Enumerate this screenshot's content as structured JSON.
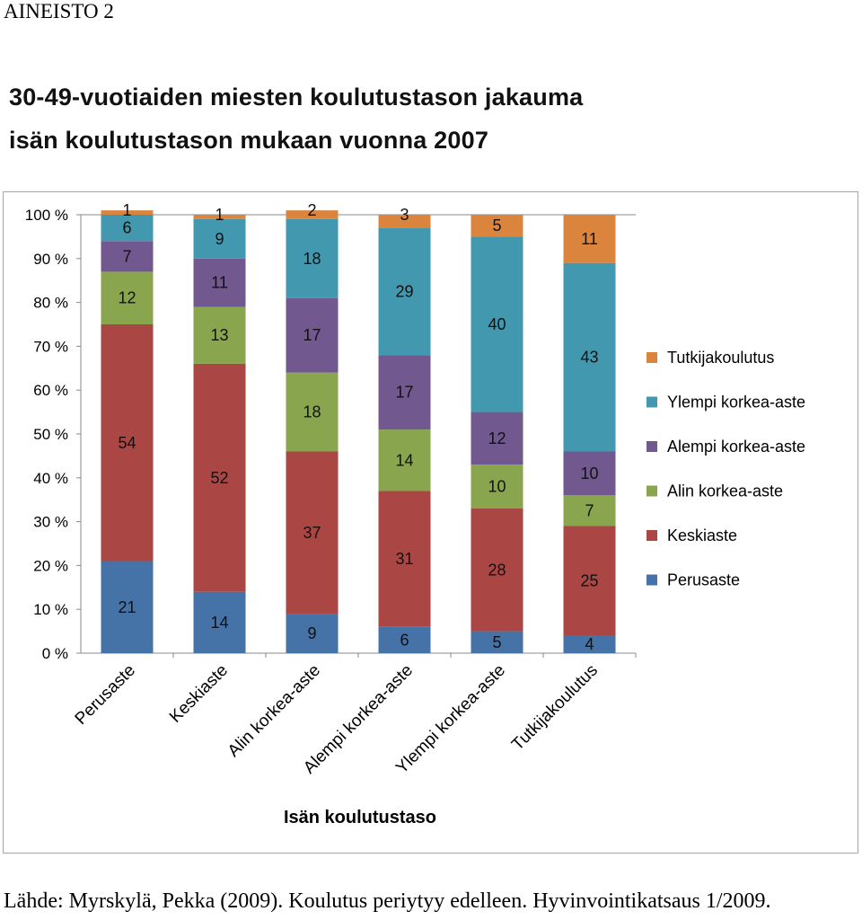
{
  "heading": "AINEISTO 2",
  "title_line1": "30-49-vuotiaiden miesten koulutustason jakauma",
  "title_line2": "isän koulutustason mukaan vuonna 2007",
  "source": "Lähde: Myrskylä, Pekka (2009). Koulutus periytyy edelleen. Hyvinvointikatsaus 1/2009.",
  "chart_data": {
    "type": "bar",
    "stacked": true,
    "categories": [
      "Perusaste",
      "Keskiaste",
      "Alin korkea-aste",
      "Alempi korkea-aste",
      "Ylempi korkea-aste",
      "Tutkijakoulutus"
    ],
    "series": [
      {
        "name": "Perusaste",
        "color": "#4572a7",
        "values": [
          21,
          14,
          9,
          6,
          5,
          4
        ]
      },
      {
        "name": "Keskiaste",
        "color": "#aa4643",
        "values": [
          54,
          52,
          37,
          31,
          28,
          25
        ]
      },
      {
        "name": "Alin korkea-aste",
        "color": "#89a54e",
        "values": [
          12,
          13,
          18,
          14,
          10,
          7
        ]
      },
      {
        "name": "Alempi korkea-aste",
        "color": "#71588f",
        "values": [
          7,
          11,
          17,
          17,
          12,
          10
        ]
      },
      {
        "name": "Ylempi korkea-aste",
        "color": "#4198af",
        "values": [
          6,
          9,
          18,
          29,
          40,
          43
        ]
      },
      {
        "name": "Tutkijakoulutus",
        "color": "#db843d",
        "values": [
          1,
          1,
          2,
          3,
          5,
          11
        ]
      }
    ],
    "xlabel": "Isän koulutustaso",
    "ylabel": "",
    "ylim": [
      0,
      100
    ],
    "yticks": [
      "0 %",
      "10 %",
      "20 %",
      "30 %",
      "40 %",
      "50 %",
      "60 %",
      "70 %",
      "80 %",
      "90 %",
      "100 %"
    ],
    "grid": false,
    "legend_position": "right",
    "legend_order": [
      "Tutkijakoulutus",
      "Ylempi korkea-aste",
      "Alempi korkea-aste",
      "Alin korkea-aste",
      "Keskiaste",
      "Perusaste"
    ]
  }
}
